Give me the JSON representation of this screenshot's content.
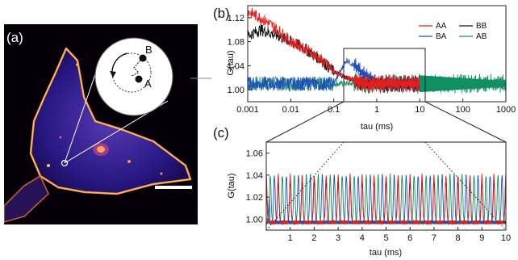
{
  "panels": {
    "a": "(a)",
    "b": "(b)",
    "c": "(c)"
  },
  "inset": {
    "point_b": "B",
    "point_a": "A"
  },
  "colors": {
    "AA": "#e02020",
    "BB": "#111111",
    "BA": "#1f4fbf",
    "AB": "#109060",
    "cell_background": "#000000",
    "cell_body": "#2c1f8f",
    "membrane": "#ffb347"
  },
  "chart_data": [
    {
      "type": "line",
      "panel": "(b)",
      "x_scale": "log",
      "xlim": [
        0.001,
        1000
      ],
      "ylim": [
        0.98,
        1.14
      ],
      "xlabel": "tau (ms)",
      "ylabel": "G(tau)",
      "x_ticks": [
        "0.001",
        "0.01",
        "0.1",
        "1",
        "10",
        "100",
        "1000"
      ],
      "y_ticks": [
        "1.00",
        "1.04",
        "1.08",
        "1.12"
      ],
      "legend": [
        "AA",
        "BB",
        "BA",
        "AB"
      ],
      "legend_position": "top-right",
      "zoom_region_ms": [
        0.1,
        10
      ],
      "series": [
        {
          "name": "AA",
          "x": [
            0.001,
            0.002,
            0.005,
            0.01,
            0.02,
            0.05,
            0.1,
            0.2,
            0.5,
            1,
            2,
            5,
            10
          ],
          "y": [
            1.13,
            1.12,
            1.1,
            1.08,
            1.07,
            1.05,
            1.03,
            1.02,
            1.01,
            1.01,
            1.01,
            1.01,
            1.01
          ]
        },
        {
          "name": "BB",
          "x": [
            0.001,
            0.002,
            0.005,
            0.01,
            0.02,
            0.05,
            0.1,
            0.2,
            0.5,
            1,
            2,
            5,
            10
          ],
          "y": [
            1.09,
            1.1,
            1.09,
            1.08,
            1.07,
            1.05,
            1.03,
            1.02,
            1.01,
            1.01,
            1.01,
            1.01,
            1.01
          ]
        },
        {
          "name": "BA",
          "x": [
            0.001,
            0.01,
            0.1,
            0.2,
            1,
            10
          ],
          "y": [
            1.01,
            1.01,
            1.01,
            1.05,
            1.01,
            1.01
          ]
        },
        {
          "name": "AB",
          "x": [
            0.001,
            0.01,
            0.1,
            1,
            10,
            100,
            1000
          ],
          "y": [
            1.01,
            1.01,
            1.01,
            1.01,
            1.01,
            1.01,
            1.01
          ]
        }
      ]
    },
    {
      "type": "line",
      "panel": "(c)",
      "xlim": [
        0,
        10
      ],
      "ylim": [
        0.99,
        1.07
      ],
      "xlabel": "tau (ms)",
      "ylabel": "G(tau)",
      "x_ticks": [
        "1",
        "2",
        "3",
        "4",
        "5",
        "6",
        "7",
        "8",
        "9",
        "10"
      ],
      "y_ticks": [
        "1.00",
        "1.02",
        "1.04",
        "1.06"
      ],
      "period_ms": 0.5,
      "series": [
        {
          "name": "AA",
          "peak_phase_ms": 0.0,
          "peak_value": 1.04,
          "base_value": 0.997
        },
        {
          "name": "BB",
          "peak_phase_ms": 0.0,
          "peak_value": 1.035,
          "base_value": 0.997
        },
        {
          "name": "BA",
          "peak_phase_ms": 0.34,
          "peak_value": 1.04,
          "base_value": 0.997
        },
        {
          "name": "AB",
          "peak_phase_ms": 0.17,
          "peak_value": 1.04,
          "base_value": 0.997
        }
      ]
    }
  ]
}
